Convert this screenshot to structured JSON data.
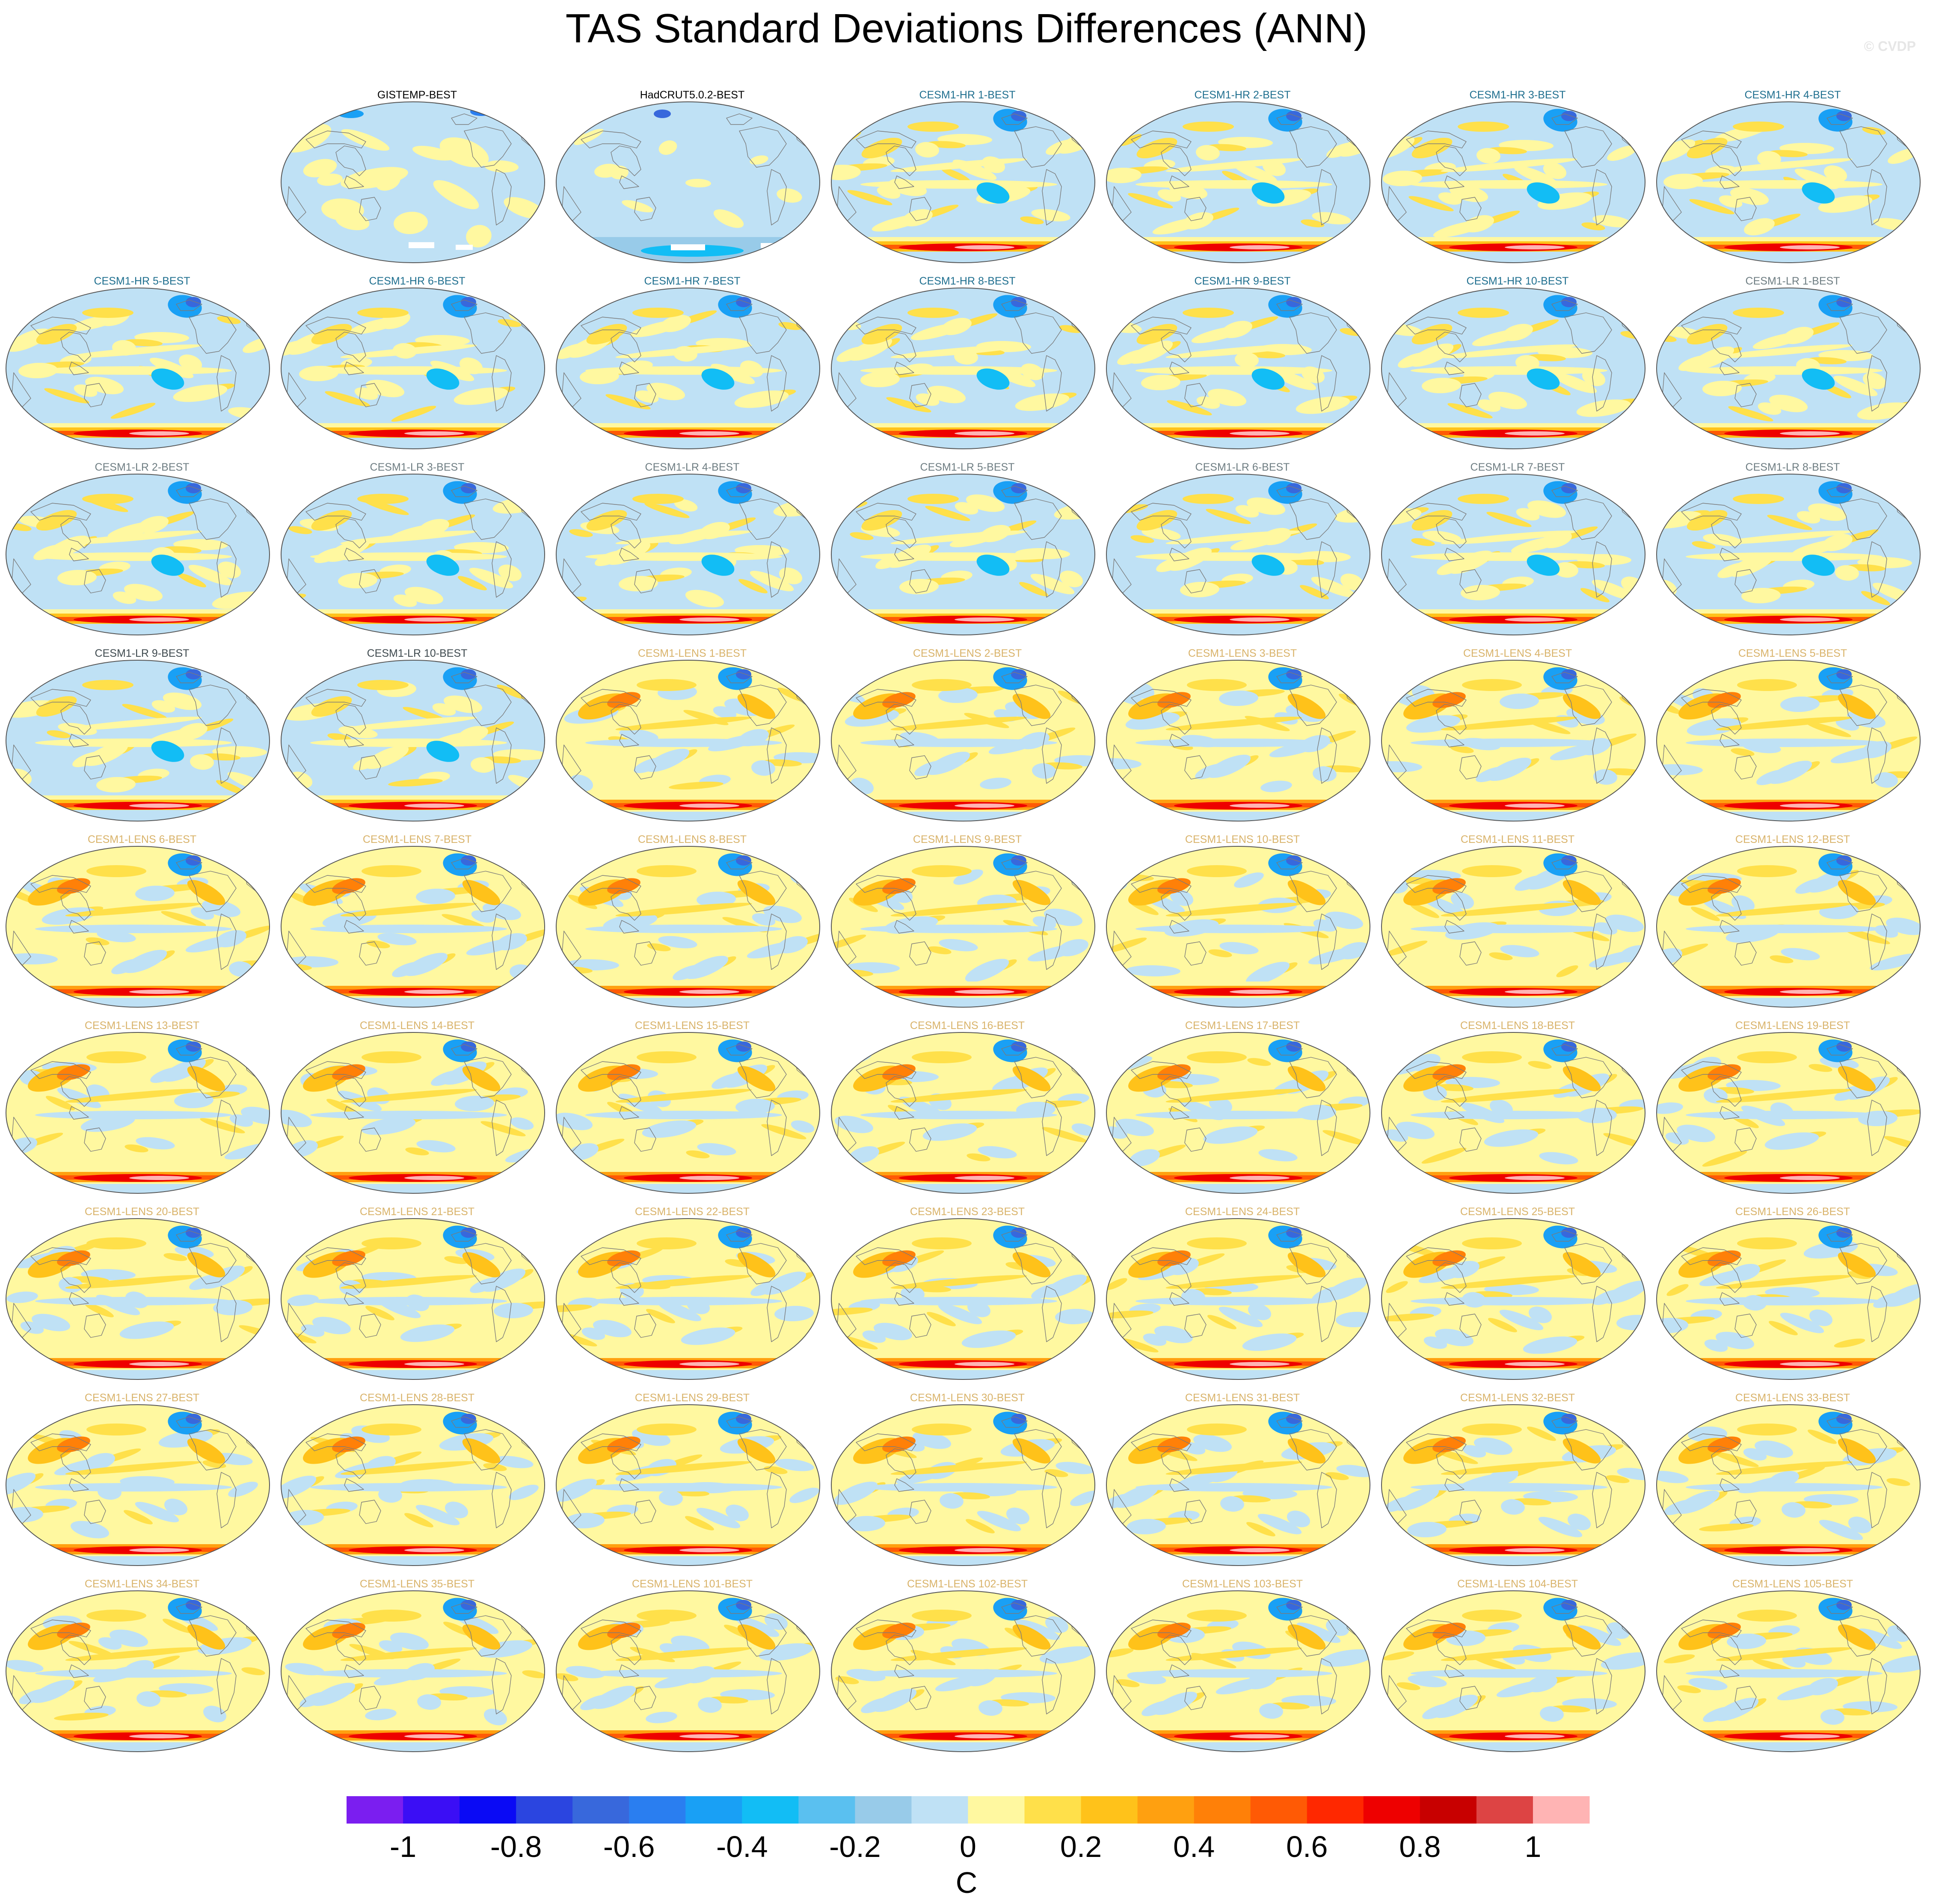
{
  "title": "TAS Standard Deviations Differences (ANN)",
  "credit": "© CVDP",
  "panels": [
    {
      "label": "GISTEMP-BEST",
      "row": 0,
      "col": 1,
      "color": "#000000",
      "variant": "obs1"
    },
    {
      "label": "HadCRUT5.0.2-BEST",
      "row": 0,
      "col": 2,
      "color": "#000000",
      "variant": "obs2"
    },
    {
      "label": "CESM1-HR 1-BEST",
      "row": 0,
      "col": 3,
      "color": "#1f6f8f",
      "variant": "hr"
    },
    {
      "label": "CESM1-HR 2-BEST",
      "row": 0,
      "col": 4,
      "color": "#1f6f8f",
      "variant": "hr"
    },
    {
      "label": "CESM1-HR 3-BEST",
      "row": 0,
      "col": 5,
      "color": "#1f6f8f",
      "variant": "hr"
    },
    {
      "label": "CESM1-HR 4-BEST",
      "row": 0,
      "col": 6,
      "color": "#1f6f8f",
      "variant": "hr"
    },
    {
      "label": "CESM1-HR 5-BEST",
      "row": 1,
      "col": 0,
      "color": "#1f6f8f",
      "variant": "hr"
    },
    {
      "label": "CESM1-HR 6-BEST",
      "row": 1,
      "col": 1,
      "color": "#1f6f8f",
      "variant": "hr"
    },
    {
      "label": "CESM1-HR 7-BEST",
      "row": 1,
      "col": 2,
      "color": "#1f6f8f",
      "variant": "hr"
    },
    {
      "label": "CESM1-HR 8-BEST",
      "row": 1,
      "col": 3,
      "color": "#1f6f8f",
      "variant": "hr"
    },
    {
      "label": "CESM1-HR 9-BEST",
      "row": 1,
      "col": 4,
      "color": "#1f6f8f",
      "variant": "hr"
    },
    {
      "label": "CESM1-HR 10-BEST",
      "row": 1,
      "col": 5,
      "color": "#1f6f8f",
      "variant": "hr"
    },
    {
      "label": "CESM1-LR 1-BEST",
      "row": 1,
      "col": 6,
      "color": "#6e7d82",
      "variant": "lr"
    },
    {
      "label": "CESM1-LR 2-BEST",
      "row": 2,
      "col": 0,
      "color": "#6e7d82",
      "variant": "lr"
    },
    {
      "label": "CESM1-LR 3-BEST",
      "row": 2,
      "col": 1,
      "color": "#6e7d82",
      "variant": "lr"
    },
    {
      "label": "CESM1-LR 4-BEST",
      "row": 2,
      "col": 2,
      "color": "#6e7d82",
      "variant": "lr"
    },
    {
      "label": "CESM1-LR 5-BEST",
      "row": 2,
      "col": 3,
      "color": "#6e7d82",
      "variant": "lr"
    },
    {
      "label": "CESM1-LR 6-BEST",
      "row": 2,
      "col": 4,
      "color": "#6e7d82",
      "variant": "lr"
    },
    {
      "label": "CESM1-LR 7-BEST",
      "row": 2,
      "col": 5,
      "color": "#6e7d82",
      "variant": "lr"
    },
    {
      "label": "CESM1-LR 8-BEST",
      "row": 2,
      "col": 6,
      "color": "#6e7d82",
      "variant": "lr"
    },
    {
      "label": "CESM1-LR 9-BEST",
      "row": 3,
      "col": 0,
      "color": "#3f4a4f",
      "variant": "lr"
    },
    {
      "label": "CESM1-LR 10-BEST",
      "row": 3,
      "col": 1,
      "color": "#3f4a4f",
      "variant": "lr"
    },
    {
      "label": "CESM1-LENS 1-BEST",
      "row": 3,
      "col": 2,
      "color": "#d9b36a",
      "variant": "lens"
    },
    {
      "label": "CESM1-LENS 2-BEST",
      "row": 3,
      "col": 3,
      "color": "#d9b36a",
      "variant": "lens"
    },
    {
      "label": "CESM1-LENS 3-BEST",
      "row": 3,
      "col": 4,
      "color": "#d9b36a",
      "variant": "lens"
    },
    {
      "label": "CESM1-LENS 4-BEST",
      "row": 3,
      "col": 5,
      "color": "#d9b36a",
      "variant": "lens"
    },
    {
      "label": "CESM1-LENS 5-BEST",
      "row": 3,
      "col": 6,
      "color": "#d9b36a",
      "variant": "lens"
    },
    {
      "label": "CESM1-LENS 6-BEST",
      "row": 4,
      "col": 0,
      "color": "#d9b36a",
      "variant": "lens"
    },
    {
      "label": "CESM1-LENS 7-BEST",
      "row": 4,
      "col": 1,
      "color": "#d9b36a",
      "variant": "lens"
    },
    {
      "label": "CESM1-LENS 8-BEST",
      "row": 4,
      "col": 2,
      "color": "#d9b36a",
      "variant": "lens"
    },
    {
      "label": "CESM1-LENS 9-BEST",
      "row": 4,
      "col": 3,
      "color": "#d9b36a",
      "variant": "lens"
    },
    {
      "label": "CESM1-LENS 10-BEST",
      "row": 4,
      "col": 4,
      "color": "#d9b36a",
      "variant": "lens"
    },
    {
      "label": "CESM1-LENS 11-BEST",
      "row": 4,
      "col": 5,
      "color": "#d9b36a",
      "variant": "lens"
    },
    {
      "label": "CESM1-LENS 12-BEST",
      "row": 4,
      "col": 6,
      "color": "#d9b36a",
      "variant": "lens"
    },
    {
      "label": "CESM1-LENS 13-BEST",
      "row": 5,
      "col": 0,
      "color": "#d9b36a",
      "variant": "lens"
    },
    {
      "label": "CESM1-LENS 14-BEST",
      "row": 5,
      "col": 1,
      "color": "#d9b36a",
      "variant": "lens"
    },
    {
      "label": "CESM1-LENS 15-BEST",
      "row": 5,
      "col": 2,
      "color": "#d9b36a",
      "variant": "lens"
    },
    {
      "label": "CESM1-LENS 16-BEST",
      "row": 5,
      "col": 3,
      "color": "#d9b36a",
      "variant": "lens"
    },
    {
      "label": "CESM1-LENS 17-BEST",
      "row": 5,
      "col": 4,
      "color": "#d9b36a",
      "variant": "lens"
    },
    {
      "label": "CESM1-LENS 18-BEST",
      "row": 5,
      "col": 5,
      "color": "#d9b36a",
      "variant": "lens"
    },
    {
      "label": "CESM1-LENS 19-BEST",
      "row": 5,
      "col": 6,
      "color": "#d9b36a",
      "variant": "lens"
    },
    {
      "label": "CESM1-LENS 20-BEST",
      "row": 6,
      "col": 0,
      "color": "#d9b36a",
      "variant": "lens"
    },
    {
      "label": "CESM1-LENS 21-BEST",
      "row": 6,
      "col": 1,
      "color": "#d9b36a",
      "variant": "lens"
    },
    {
      "label": "CESM1-LENS 22-BEST",
      "row": 6,
      "col": 2,
      "color": "#d9b36a",
      "variant": "lens"
    },
    {
      "label": "CESM1-LENS 23-BEST",
      "row": 6,
      "col": 3,
      "color": "#d9b36a",
      "variant": "lens"
    },
    {
      "label": "CESM1-LENS 24-BEST",
      "row": 6,
      "col": 4,
      "color": "#d9b36a",
      "variant": "lens"
    },
    {
      "label": "CESM1-LENS 25-BEST",
      "row": 6,
      "col": 5,
      "color": "#d9b36a",
      "variant": "lens"
    },
    {
      "label": "CESM1-LENS 26-BEST",
      "row": 6,
      "col": 6,
      "color": "#d9b36a",
      "variant": "lens"
    },
    {
      "label": "CESM1-LENS 27-BEST",
      "row": 7,
      "col": 0,
      "color": "#d9b36a",
      "variant": "lens"
    },
    {
      "label": "CESM1-LENS 28-BEST",
      "row": 7,
      "col": 1,
      "color": "#d9b36a",
      "variant": "lens"
    },
    {
      "label": "CESM1-LENS 29-BEST",
      "row": 7,
      "col": 2,
      "color": "#d9b36a",
      "variant": "lens"
    },
    {
      "label": "CESM1-LENS 30-BEST",
      "row": 7,
      "col": 3,
      "color": "#d9b36a",
      "variant": "lens"
    },
    {
      "label": "CESM1-LENS 31-BEST",
      "row": 7,
      "col": 4,
      "color": "#d9b36a",
      "variant": "lens"
    },
    {
      "label": "CESM1-LENS 32-BEST",
      "row": 7,
      "col": 5,
      "color": "#d9b36a",
      "variant": "lens"
    },
    {
      "label": "CESM1-LENS 33-BEST",
      "row": 7,
      "col": 6,
      "color": "#d9b36a",
      "variant": "lens"
    },
    {
      "label": "CESM1-LENS 34-BEST",
      "row": 8,
      "col": 0,
      "color": "#d9b36a",
      "variant": "lens"
    },
    {
      "label": "CESM1-LENS 35-BEST",
      "row": 8,
      "col": 1,
      "color": "#d9b36a",
      "variant": "lens"
    },
    {
      "label": "CESM1-LENS 101-BEST",
      "row": 8,
      "col": 2,
      "color": "#d9b36a",
      "variant": "lens"
    },
    {
      "label": "CESM1-LENS 102-BEST",
      "row": 8,
      "col": 3,
      "color": "#d9b36a",
      "variant": "lens"
    },
    {
      "label": "CESM1-LENS 103-BEST",
      "row": 8,
      "col": 4,
      "color": "#d9b36a",
      "variant": "lens"
    },
    {
      "label": "CESM1-LENS 104-BEST",
      "row": 8,
      "col": 5,
      "color": "#d9b36a",
      "variant": "lens"
    },
    {
      "label": "CESM1-LENS 105-BEST",
      "row": 8,
      "col": 6,
      "color": "#d9b36a",
      "variant": "lens"
    }
  ],
  "colorbar": {
    "unit": "C",
    "colors": [
      "#7b1ef0",
      "#3b0ef5",
      "#0a0af5",
      "#2b45e0",
      "#3868dc",
      "#2a7ef0",
      "#19a0f5",
      "#12bdf5",
      "#5ac0f0",
      "#98cbe9",
      "#bfe1f5",
      "#fff8a0",
      "#ffe04a",
      "#ffc21a",
      "#ffa010",
      "#ff8008",
      "#ff5a05",
      "#ff2800",
      "#ee0000",
      "#c80000",
      "#dd4444",
      "#ffb4b4"
    ],
    "tick_values": [
      -1,
      -0.8,
      -0.6,
      -0.4,
      -0.2,
      0,
      0.2,
      0.4,
      0.6,
      0.8,
      1
    ],
    "tick_labels": [
      "-1",
      "-0.8",
      "-0.6",
      "-0.4",
      "-0.2",
      "0",
      "0.2",
      "0.4",
      "0.6",
      "0.8",
      "1"
    ]
  }
}
